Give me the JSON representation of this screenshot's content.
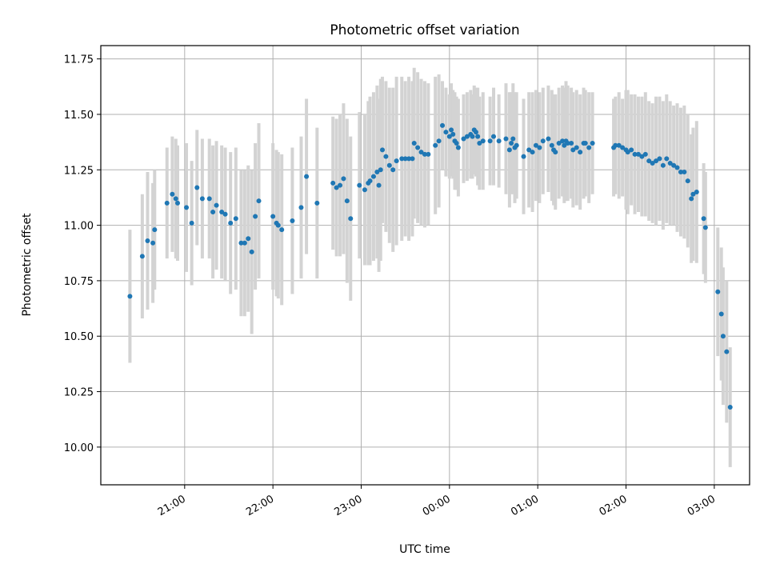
{
  "chart_data": {
    "type": "scatter",
    "title": "Photometric offset variation",
    "xlabel": "UTC time",
    "ylabel": "Photometric offset",
    "x_unit": "hours after 20:00 UTC on the plotted night",
    "x_tick_values": [
      1,
      2,
      3,
      4,
      5,
      6,
      7
    ],
    "xtick_labels": [
      "21:00",
      "22:00",
      "23:00",
      "00:00",
      "01:00",
      "02:00",
      "03:00"
    ],
    "xlim": [
      0.05,
      7.4
    ],
    "ytick_labels": [
      "10.00",
      "10.25",
      "10.50",
      "10.75",
      "11.00",
      "11.25",
      "11.50",
      "11.75"
    ],
    "ylim": [
      9.83,
      11.81
    ],
    "grid": true,
    "colors": {
      "point": "#1f77b4",
      "errorbar": "#d3d3d3",
      "grid": "#b0b0b0"
    },
    "points": [
      [
        0.38,
        10.68,
        0.3
      ],
      [
        0.52,
        10.86,
        0.28
      ],
      [
        0.58,
        10.93,
        0.31
      ],
      [
        0.64,
        10.92,
        0.27
      ],
      [
        0.66,
        10.98,
        0.27
      ],
      [
        0.8,
        11.1,
        0.25
      ],
      [
        0.86,
        11.14,
        0.26
      ],
      [
        0.9,
        11.12,
        0.27
      ],
      [
        0.92,
        11.1,
        0.26
      ],
      [
        1.02,
        11.08,
        0.29
      ],
      [
        1.08,
        11.01,
        0.28
      ],
      [
        1.14,
        11.17,
        0.26
      ],
      [
        1.2,
        11.12,
        0.27
      ],
      [
        1.28,
        11.12,
        0.27
      ],
      [
        1.32,
        11.06,
        0.3
      ],
      [
        1.36,
        11.09,
        0.29
      ],
      [
        1.42,
        11.06,
        0.3
      ],
      [
        1.46,
        11.05,
        0.3
      ],
      [
        1.52,
        11.01,
        0.32
      ],
      [
        1.58,
        11.03,
        0.32
      ],
      [
        1.64,
        10.92,
        0.33
      ],
      [
        1.68,
        10.92,
        0.33
      ],
      [
        1.72,
        10.94,
        0.33
      ],
      [
        1.76,
        10.88,
        0.37
      ],
      [
        1.8,
        11.04,
        0.33
      ],
      [
        1.84,
        11.11,
        0.35
      ],
      [
        2.0,
        11.04,
        0.33
      ],
      [
        2.04,
        11.01,
        0.33
      ],
      [
        2.06,
        11.0,
        0.33
      ],
      [
        2.1,
        10.98,
        0.34
      ],
      [
        2.22,
        11.02,
        0.33
      ],
      [
        2.32,
        11.08,
        0.32
      ],
      [
        2.38,
        11.22,
        0.35
      ],
      [
        2.5,
        11.1,
        0.34
      ],
      [
        2.68,
        11.19,
        0.3
      ],
      [
        2.72,
        11.17,
        0.31
      ],
      [
        2.76,
        11.18,
        0.32
      ],
      [
        2.8,
        11.21,
        0.34
      ],
      [
        2.84,
        11.11,
        0.37
      ],
      [
        2.88,
        11.03,
        0.37
      ],
      [
        2.98,
        11.18,
        0.33
      ],
      [
        3.04,
        11.16,
        0.34
      ],
      [
        3.08,
        11.19,
        0.37
      ],
      [
        3.1,
        11.2,
        0.38
      ],
      [
        3.14,
        11.22,
        0.38
      ],
      [
        3.18,
        11.24,
        0.39
      ],
      [
        3.2,
        11.18,
        0.39
      ],
      [
        3.22,
        11.25,
        0.41
      ],
      [
        3.24,
        11.34,
        0.33
      ],
      [
        3.28,
        11.31,
        0.34
      ],
      [
        3.32,
        11.27,
        0.35
      ],
      [
        3.36,
        11.25,
        0.37
      ],
      [
        3.4,
        11.29,
        0.38
      ],
      [
        3.46,
        11.3,
        0.37
      ],
      [
        3.5,
        11.3,
        0.35
      ],
      [
        3.54,
        11.3,
        0.37
      ],
      [
        3.58,
        11.3,
        0.35
      ],
      [
        3.6,
        11.37,
        0.34
      ],
      [
        3.64,
        11.35,
        0.34
      ],
      [
        3.68,
        11.33,
        0.33
      ],
      [
        3.72,
        11.32,
        0.33
      ],
      [
        3.76,
        11.32,
        0.32
      ],
      [
        3.84,
        11.36,
        0.31
      ],
      [
        3.88,
        11.38,
        0.3
      ],
      [
        3.92,
        11.45,
        0.2
      ],
      [
        3.96,
        11.42,
        0.2
      ],
      [
        4.0,
        11.4,
        0.19
      ],
      [
        4.02,
        11.43,
        0.21
      ],
      [
        4.04,
        11.41,
        0.2
      ],
      [
        4.06,
        11.38,
        0.22
      ],
      [
        4.08,
        11.37,
        0.21
      ],
      [
        4.1,
        11.35,
        0.22
      ],
      [
        4.16,
        11.39,
        0.2
      ],
      [
        4.2,
        11.4,
        0.2
      ],
      [
        4.24,
        11.41,
        0.2
      ],
      [
        4.26,
        11.4,
        0.19
      ],
      [
        4.28,
        11.43,
        0.2
      ],
      [
        4.3,
        11.42,
        0.2
      ],
      [
        4.32,
        11.4,
        0.22
      ],
      [
        4.34,
        11.37,
        0.21
      ],
      [
        4.38,
        11.38,
        0.22
      ],
      [
        4.46,
        11.38,
        0.2
      ],
      [
        4.5,
        11.4,
        0.22
      ],
      [
        4.56,
        11.38,
        0.21
      ],
      [
        4.64,
        11.39,
        0.25
      ],
      [
        4.68,
        11.34,
        0.26
      ],
      [
        4.7,
        11.37,
        0.23
      ],
      [
        4.72,
        11.39,
        0.25
      ],
      [
        4.74,
        11.35,
        0.25
      ],
      [
        4.76,
        11.36,
        0.24
      ],
      [
        4.84,
        11.31,
        0.26
      ],
      [
        4.9,
        11.34,
        0.26
      ],
      [
        4.94,
        11.33,
        0.27
      ],
      [
        4.98,
        11.36,
        0.25
      ],
      [
        5.02,
        11.35,
        0.25
      ],
      [
        5.06,
        11.38,
        0.24
      ],
      [
        5.12,
        11.39,
        0.24
      ],
      [
        5.16,
        11.36,
        0.25
      ],
      [
        5.18,
        11.34,
        0.25
      ],
      [
        5.2,
        11.33,
        0.26
      ],
      [
        5.24,
        11.37,
        0.25
      ],
      [
        5.28,
        11.38,
        0.25
      ],
      [
        5.3,
        11.36,
        0.26
      ],
      [
        5.32,
        11.38,
        0.27
      ],
      [
        5.34,
        11.37,
        0.26
      ],
      [
        5.38,
        11.37,
        0.25
      ],
      [
        5.4,
        11.34,
        0.26
      ],
      [
        5.44,
        11.35,
        0.26
      ],
      [
        5.48,
        11.33,
        0.26
      ],
      [
        5.52,
        11.37,
        0.25
      ],
      [
        5.54,
        11.37,
        0.24
      ],
      [
        5.58,
        11.35,
        0.25
      ],
      [
        5.62,
        11.37,
        0.23
      ],
      [
        5.86,
        11.35,
        0.22
      ],
      [
        5.88,
        11.36,
        0.22
      ],
      [
        5.92,
        11.36,
        0.24
      ],
      [
        5.96,
        11.35,
        0.22
      ],
      [
        6.0,
        11.34,
        0.27
      ],
      [
        6.02,
        11.33,
        0.28
      ],
      [
        6.06,
        11.34,
        0.25
      ],
      [
        6.1,
        11.32,
        0.27
      ],
      [
        6.14,
        11.32,
        0.26
      ],
      [
        6.18,
        11.31,
        0.27
      ],
      [
        6.22,
        11.32,
        0.28
      ],
      [
        6.26,
        11.29,
        0.27
      ],
      [
        6.3,
        11.28,
        0.27
      ],
      [
        6.34,
        11.29,
        0.29
      ],
      [
        6.38,
        11.3,
        0.28
      ],
      [
        6.42,
        11.27,
        0.29
      ],
      [
        6.46,
        11.3,
        0.29
      ],
      [
        6.5,
        11.28,
        0.28
      ],
      [
        6.54,
        11.27,
        0.27
      ],
      [
        6.58,
        11.26,
        0.29
      ],
      [
        6.62,
        11.24,
        0.29
      ],
      [
        6.66,
        11.24,
        0.3
      ],
      [
        6.7,
        11.2,
        0.3
      ],
      [
        6.74,
        11.12,
        0.29
      ],
      [
        6.76,
        11.14,
        0.3
      ],
      [
        6.8,
        11.15,
        0.32
      ],
      [
        6.88,
        11.03,
        0.25
      ],
      [
        6.9,
        10.99,
        0.25
      ],
      [
        7.04,
        10.7,
        0.29
      ],
      [
        7.08,
        10.6,
        0.3
      ],
      [
        7.1,
        10.5,
        0.31
      ],
      [
        7.14,
        10.43,
        0.32
      ],
      [
        7.18,
        10.18,
        0.27
      ]
    ]
  }
}
